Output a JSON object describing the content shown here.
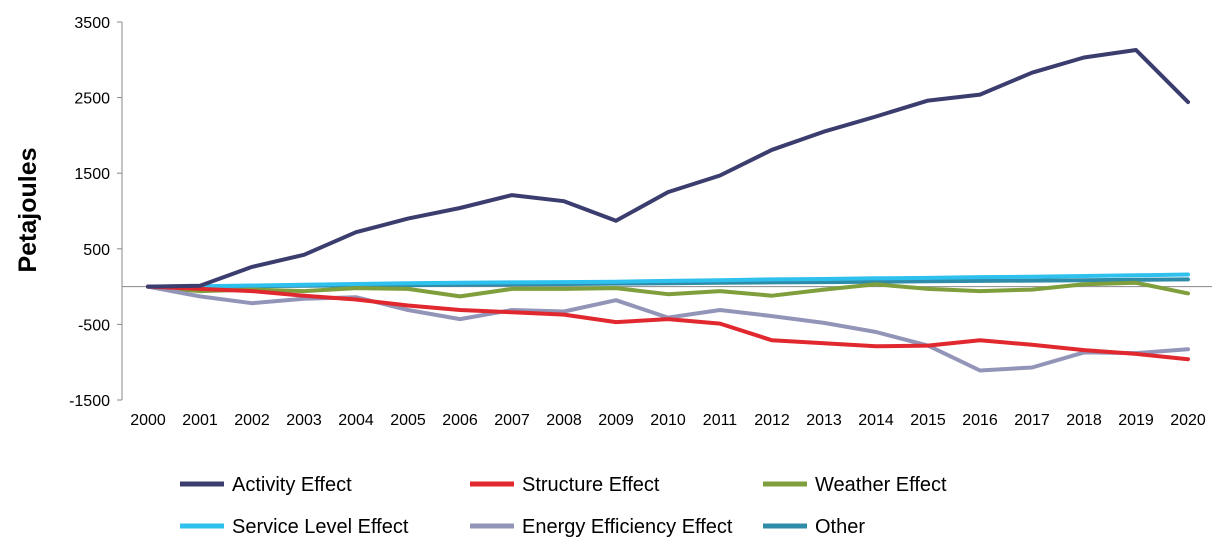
{
  "chart_data": {
    "type": "line",
    "ylabel": "Petajoules",
    "xlabel": "",
    "ylim": [
      -1500,
      3500
    ],
    "yticks": [
      3500,
      2500,
      1500,
      500,
      -500,
      -1500
    ],
    "ytick_labels": [
      "3500",
      "2500",
      "1500",
      "500",
      "-500",
      "-1500"
    ],
    "x": [
      "2000",
      "2001",
      "2002",
      "2003",
      "2004",
      "2005",
      "2006",
      "2007",
      "2008",
      "2009",
      "2010",
      "2011",
      "2012",
      "2013",
      "2014",
      "2015",
      "2016",
      "2017",
      "2018",
      "2019",
      "2020"
    ],
    "legend_position": "bottom",
    "series": [
      {
        "name": "Activity Effect",
        "color": "#3a3d6e",
        "values": [
          0,
          10,
          260,
          420,
          720,
          900,
          1040,
          1210,
          1130,
          870,
          1250,
          1470,
          1810,
          2050,
          2250,
          2460,
          2540,
          2830,
          3030,
          3130,
          2440
        ]
      },
      {
        "name": "Structure Effect",
        "color": "#e0282e",
        "values": [
          0,
          -30,
          -60,
          -120,
          -170,
          -250,
          -310,
          -340,
          -370,
          -470,
          -430,
          -490,
          -710,
          -750,
          -790,
          -780,
          -710,
          -770,
          -840,
          -890,
          -960
        ]
      },
      {
        "name": "Weather Effect",
        "color": "#7f9e3c",
        "values": [
          0,
          -60,
          -40,
          -60,
          -20,
          -30,
          -130,
          -30,
          -30,
          -20,
          -100,
          -60,
          -120,
          -40,
          30,
          -30,
          -60,
          -40,
          30,
          50,
          -90
        ]
      },
      {
        "name": "Service Level Effect",
        "color": "#2ec1ee",
        "values": [
          0,
          5,
          15,
          25,
          35,
          45,
          50,
          55,
          60,
          65,
          75,
          85,
          95,
          100,
          110,
          115,
          125,
          130,
          140,
          150,
          160
        ]
      },
      {
        "name": "Energy Efficiency Effect",
        "color": "#9395b8",
        "values": [
          0,
          -130,
          -220,
          -160,
          -140,
          -310,
          -430,
          -310,
          -330,
          -180,
          -410,
          -310,
          -390,
          -480,
          -600,
          -780,
          -1110,
          -1070,
          -870,
          -880,
          -830
        ]
      },
      {
        "name": "Other",
        "color": "#2f8ca8",
        "values": [
          0,
          0,
          5,
          10,
          15,
          20,
          25,
          30,
          35,
          40,
          45,
          50,
          55,
          60,
          65,
          70,
          75,
          80,
          85,
          90,
          95
        ]
      }
    ]
  }
}
